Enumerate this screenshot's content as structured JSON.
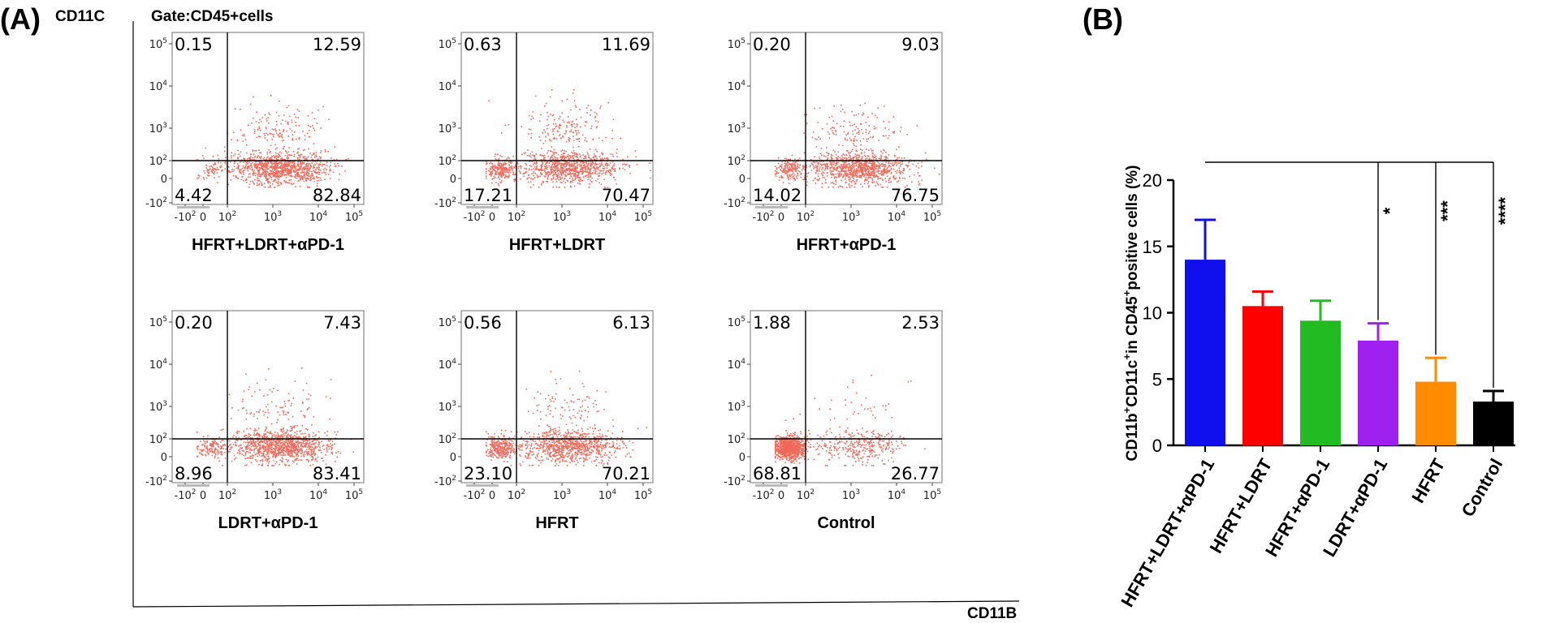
{
  "panel_a": {
    "label": "(A)",
    "y_axis_label": "CD11C",
    "x_axis_label": "CD11B",
    "gate_label": "Gate:CD45+cells"
  },
  "panel_b": {
    "label": "(B)"
  },
  "chart_data": [
    {
      "type": "scatter",
      "kind": "flow-cytometry-quadrant-plots",
      "title": "Gate:CD45+cells",
      "xlabel": "CD11B",
      "ylabel": "CD11C",
      "x_ticks": [
        "-10^2",
        "0",
        "10^2",
        "10^3",
        "10^4",
        "10^5"
      ],
      "y_ticks": [
        "-10^2",
        "0",
        "10^2",
        "10^3",
        "10^4",
        "10^5"
      ],
      "panels": [
        {
          "name": "HFRT+LDRT+αPD-1",
          "upper_left": "0.15",
          "upper_right": "12.59",
          "lower_left": "4.42",
          "lower_right": "82.84"
        },
        {
          "name": "HFRT+LDRT",
          "upper_left": "0.63",
          "upper_right": "11.69",
          "lower_left": "17.21",
          "lower_right": "70.47"
        },
        {
          "name": "HFRT+αPD-1",
          "upper_left": "0.20",
          "upper_right": "9.03",
          "lower_left": "14.02",
          "lower_right": "76.75"
        },
        {
          "name": "LDRT+αPD-1",
          "upper_left": "0.20",
          "upper_right": "7.43",
          "lower_left": "8.96",
          "lower_right": "83.41"
        },
        {
          "name": "HFRT",
          "upper_left": "0.56",
          "upper_right": "6.13",
          "lower_left": "23.10",
          "lower_right": "70.21"
        },
        {
          "name": "Control",
          "upper_left": "1.88",
          "upper_right": "2.53",
          "lower_left": "68.81",
          "lower_right": "26.77"
        }
      ]
    },
    {
      "type": "bar",
      "title": "",
      "categories": [
        "HFRT+LDRT+αPD-1",
        "HFRT+LDRT",
        "HFRT+αPD-1",
        "LDRT+αPD-1",
        "HFRT",
        "Control"
      ],
      "values": [
        14.0,
        10.5,
        9.4,
        7.9,
        4.8,
        3.3
      ],
      "errors": [
        3.0,
        1.1,
        1.5,
        1.3,
        1.8,
        0.8
      ],
      "colors": [
        "#1010ee",
        "#ff0000",
        "#22bb22",
        "#a020f0",
        "#ff8c00",
        "#000000"
      ],
      "ylabel_parts": [
        "CD11b",
        "+",
        "CD11c",
        "+",
        "in CD45",
        "+",
        "positive cells (%)"
      ],
      "ylim": [
        0,
        20
      ],
      "y_ticks": [
        0,
        5,
        10,
        15,
        20
      ],
      "significance": [
        {
          "vs": "LDRT+αPD-1",
          "label": "*"
        },
        {
          "vs": "HFRT",
          "label": "***"
        },
        {
          "vs": "Control",
          "label": "****"
        }
      ],
      "reference": "HFRT+LDRT+αPD-1"
    }
  ]
}
